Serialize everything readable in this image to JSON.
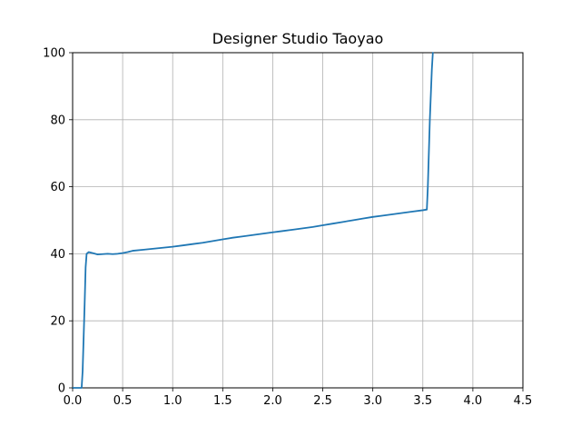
{
  "chart_data": {
    "type": "line",
    "title": "Designer Studio Taoyao",
    "xlabel": "",
    "ylabel": "",
    "xlim": [
      0.0,
      4.5
    ],
    "ylim": [
      0,
      100
    ],
    "x_ticks": [
      0.0,
      0.5,
      1.0,
      1.5,
      2.0,
      2.5,
      3.0,
      3.5,
      4.0,
      4.5
    ],
    "x_tick_labels": [
      "0.0",
      "0.5",
      "1.0",
      "1.5",
      "2.0",
      "2.5",
      "3.0",
      "3.5",
      "4.0",
      "4.5"
    ],
    "y_ticks": [
      0,
      20,
      40,
      60,
      80,
      100
    ],
    "y_tick_labels": [
      "0",
      "20",
      "40",
      "60",
      "80",
      "100"
    ],
    "grid": true,
    "legend": "none",
    "series": [
      {
        "color": "#1f77b4",
        "x": [
          0.0,
          0.09,
          0.1,
          0.12,
          0.13,
          0.14,
          0.16,
          0.2,
          0.25,
          0.3,
          0.35,
          0.4,
          0.45,
          0.5,
          0.55,
          0.6,
          0.7,
          0.8,
          0.9,
          1.0,
          1.1,
          1.2,
          1.3,
          1.4,
          1.5,
          1.6,
          1.7,
          1.8,
          1.9,
          2.0,
          2.1,
          2.2,
          2.3,
          2.4,
          2.5,
          2.6,
          2.7,
          2.8,
          2.9,
          3.0,
          3.1,
          3.2,
          3.3,
          3.4,
          3.5,
          3.54,
          3.55,
          3.57,
          3.59,
          3.6
        ],
        "y": [
          0.0,
          0.0,
          5.0,
          25.0,
          36.0,
          40.0,
          40.5,
          40.2,
          39.8,
          39.9,
          40.0,
          39.9,
          40.0,
          40.2,
          40.5,
          40.9,
          41.2,
          41.5,
          41.8,
          42.1,
          42.5,
          42.9,
          43.3,
          43.8,
          44.3,
          44.8,
          45.2,
          45.6,
          46.0,
          46.4,
          46.8,
          47.2,
          47.6,
          48.0,
          48.5,
          49.0,
          49.5,
          50.0,
          50.5,
          51.0,
          51.4,
          51.8,
          52.2,
          52.6,
          53.0,
          53.2,
          60.0,
          80.0,
          95.0,
          100.0
        ]
      }
    ]
  }
}
